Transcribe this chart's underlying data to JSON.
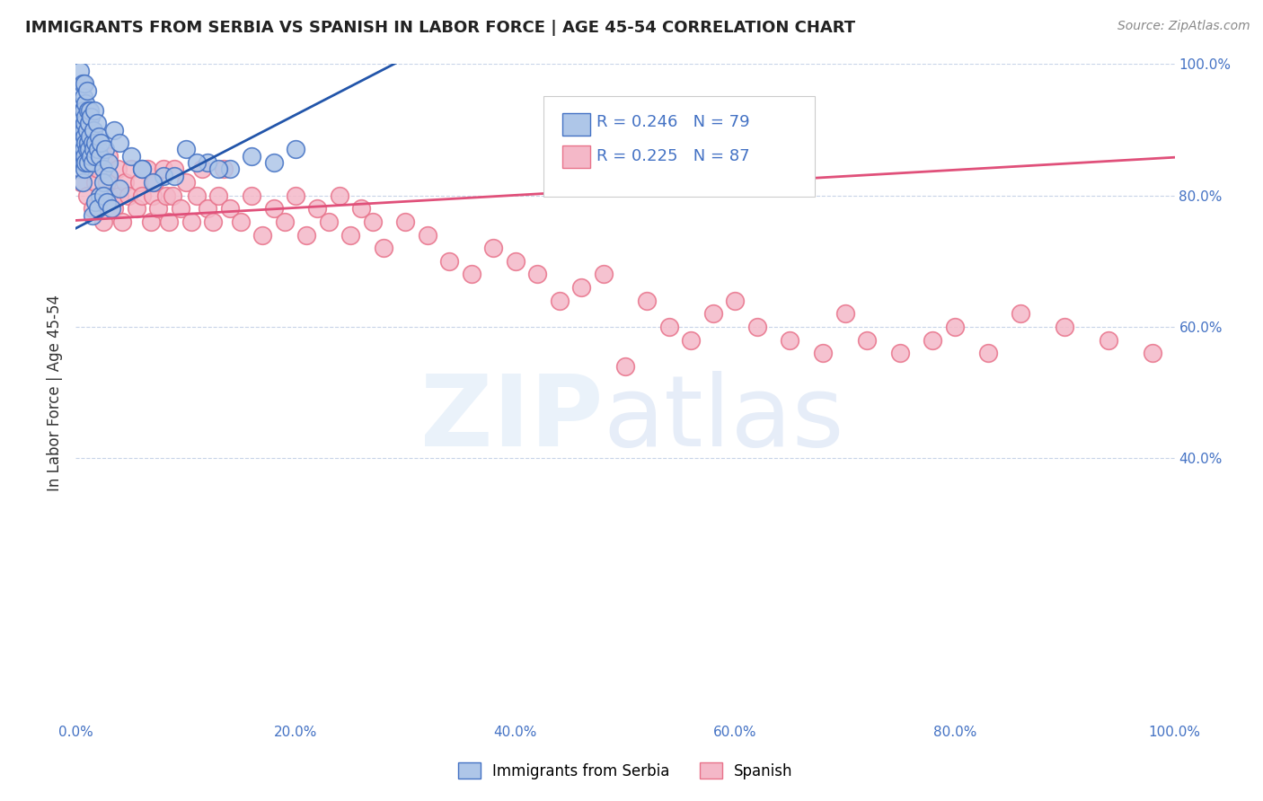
{
  "title": "IMMIGRANTS FROM SERBIA VS SPANISH IN LABOR FORCE | AGE 45-54 CORRELATION CHART",
  "source": "Source: ZipAtlas.com",
  "ylabel": "In Labor Force | Age 45-54",
  "xlim": [
    0.0,
    1.0
  ],
  "ylim": [
    0.0,
    1.0
  ],
  "xtick_positions": [
    0.0,
    0.2,
    0.4,
    0.6,
    0.8,
    1.0
  ],
  "xtick_labels": [
    "0.0%",
    "20.0%",
    "40.0%",
    "60.0%",
    "80.0%",
    "100.0%"
  ],
  "ytick_positions": [
    0.4,
    0.6,
    0.8,
    1.0
  ],
  "ytick_labels": [
    "40.0%",
    "60.0%",
    "80.0%",
    "100.0%"
  ],
  "blue_R": 0.246,
  "blue_N": 79,
  "pink_R": 0.225,
  "pink_N": 87,
  "blue_color": "#aec6e8",
  "blue_edge": "#4472c4",
  "pink_color": "#f4b8c8",
  "pink_edge": "#e8728a",
  "blue_line_color": "#2255aa",
  "pink_line_color": "#e0507a",
  "legend_color": "#4472c4",
  "grid_color": "#c8d4e8",
  "background_color": "#ffffff",
  "blue_scatter_x": [
    0.003,
    0.004,
    0.004,
    0.005,
    0.005,
    0.005,
    0.006,
    0.006,
    0.006,
    0.006,
    0.006,
    0.006,
    0.007,
    0.007,
    0.007,
    0.007,
    0.007,
    0.008,
    0.008,
    0.008,
    0.008,
    0.008,
    0.009,
    0.009,
    0.009,
    0.009,
    0.01,
    0.01,
    0.01,
    0.011,
    0.011,
    0.011,
    0.012,
    0.012,
    0.013,
    0.013,
    0.014,
    0.014,
    0.015,
    0.015,
    0.016,
    0.016,
    0.017,
    0.018,
    0.018,
    0.019,
    0.02,
    0.021,
    0.022,
    0.023,
    0.025,
    0.027,
    0.03,
    0.035,
    0.04,
    0.05,
    0.06,
    0.08,
    0.1,
    0.12,
    0.14,
    0.16,
    0.18,
    0.2,
    0.022,
    0.025,
    0.03,
    0.04,
    0.06,
    0.07,
    0.09,
    0.11,
    0.13,
    0.015,
    0.018,
    0.02,
    0.025,
    0.028,
    0.032
  ],
  "blue_scatter_y": [
    0.88,
    0.94,
    0.99,
    0.91,
    0.96,
    0.84,
    0.93,
    0.88,
    0.97,
    0.82,
    0.86,
    0.92,
    0.95,
    0.9,
    0.85,
    0.87,
    0.93,
    0.97,
    0.89,
    0.84,
    0.91,
    0.86,
    0.94,
    0.88,
    0.92,
    0.85,
    0.96,
    0.9,
    0.87,
    0.93,
    0.88,
    0.85,
    0.91,
    0.87,
    0.89,
    0.93,
    0.86,
    0.92,
    0.88,
    0.85,
    0.9,
    0.87,
    0.93,
    0.88,
    0.86,
    0.91,
    0.87,
    0.89,
    0.86,
    0.88,
    0.84,
    0.87,
    0.85,
    0.9,
    0.88,
    0.86,
    0.84,
    0.83,
    0.87,
    0.85,
    0.84,
    0.86,
    0.85,
    0.87,
    0.8,
    0.82,
    0.83,
    0.81,
    0.84,
    0.82,
    0.83,
    0.85,
    0.84,
    0.77,
    0.79,
    0.78,
    0.8,
    0.79,
    0.78
  ],
  "pink_scatter_x": [
    0.005,
    0.007,
    0.01,
    0.012,
    0.015,
    0.015,
    0.018,
    0.02,
    0.022,
    0.025,
    0.025,
    0.028,
    0.03,
    0.03,
    0.035,
    0.038,
    0.04,
    0.042,
    0.045,
    0.048,
    0.05,
    0.055,
    0.058,
    0.06,
    0.065,
    0.068,
    0.07,
    0.072,
    0.075,
    0.08,
    0.082,
    0.085,
    0.088,
    0.09,
    0.095,
    0.1,
    0.105,
    0.11,
    0.115,
    0.12,
    0.125,
    0.13,
    0.135,
    0.14,
    0.15,
    0.16,
    0.17,
    0.18,
    0.19,
    0.2,
    0.21,
    0.22,
    0.23,
    0.24,
    0.25,
    0.26,
    0.27,
    0.28,
    0.3,
    0.32,
    0.34,
    0.36,
    0.38,
    0.4,
    0.42,
    0.44,
    0.46,
    0.48,
    0.5,
    0.52,
    0.54,
    0.56,
    0.58,
    0.6,
    0.62,
    0.65,
    0.68,
    0.7,
    0.72,
    0.75,
    0.78,
    0.8,
    0.83,
    0.86,
    0.9,
    0.94,
    0.98
  ],
  "pink_scatter_y": [
    0.82,
    0.86,
    0.8,
    0.84,
    0.88,
    0.78,
    0.82,
    0.84,
    0.8,
    0.86,
    0.76,
    0.82,
    0.8,
    0.86,
    0.78,
    0.84,
    0.8,
    0.76,
    0.82,
    0.8,
    0.84,
    0.78,
    0.82,
    0.8,
    0.84,
    0.76,
    0.8,
    0.82,
    0.78,
    0.84,
    0.8,
    0.76,
    0.8,
    0.84,
    0.78,
    0.82,
    0.76,
    0.8,
    0.84,
    0.78,
    0.76,
    0.8,
    0.84,
    0.78,
    0.76,
    0.8,
    0.74,
    0.78,
    0.76,
    0.8,
    0.74,
    0.78,
    0.76,
    0.8,
    0.74,
    0.78,
    0.76,
    0.72,
    0.76,
    0.74,
    0.7,
    0.68,
    0.72,
    0.7,
    0.68,
    0.64,
    0.66,
    0.68,
    0.54,
    0.64,
    0.6,
    0.58,
    0.62,
    0.64,
    0.6,
    0.58,
    0.56,
    0.62,
    0.58,
    0.56,
    0.58,
    0.6,
    0.56,
    0.62,
    0.6,
    0.58,
    0.56
  ],
  "blue_line_x0": 0.0,
  "blue_line_y0": 0.75,
  "blue_line_x1": 0.22,
  "blue_line_y1": 0.94,
  "pink_line_x0": 0.0,
  "pink_line_y0": 0.762,
  "pink_line_x1": 1.0,
  "pink_line_y1": 0.858
}
